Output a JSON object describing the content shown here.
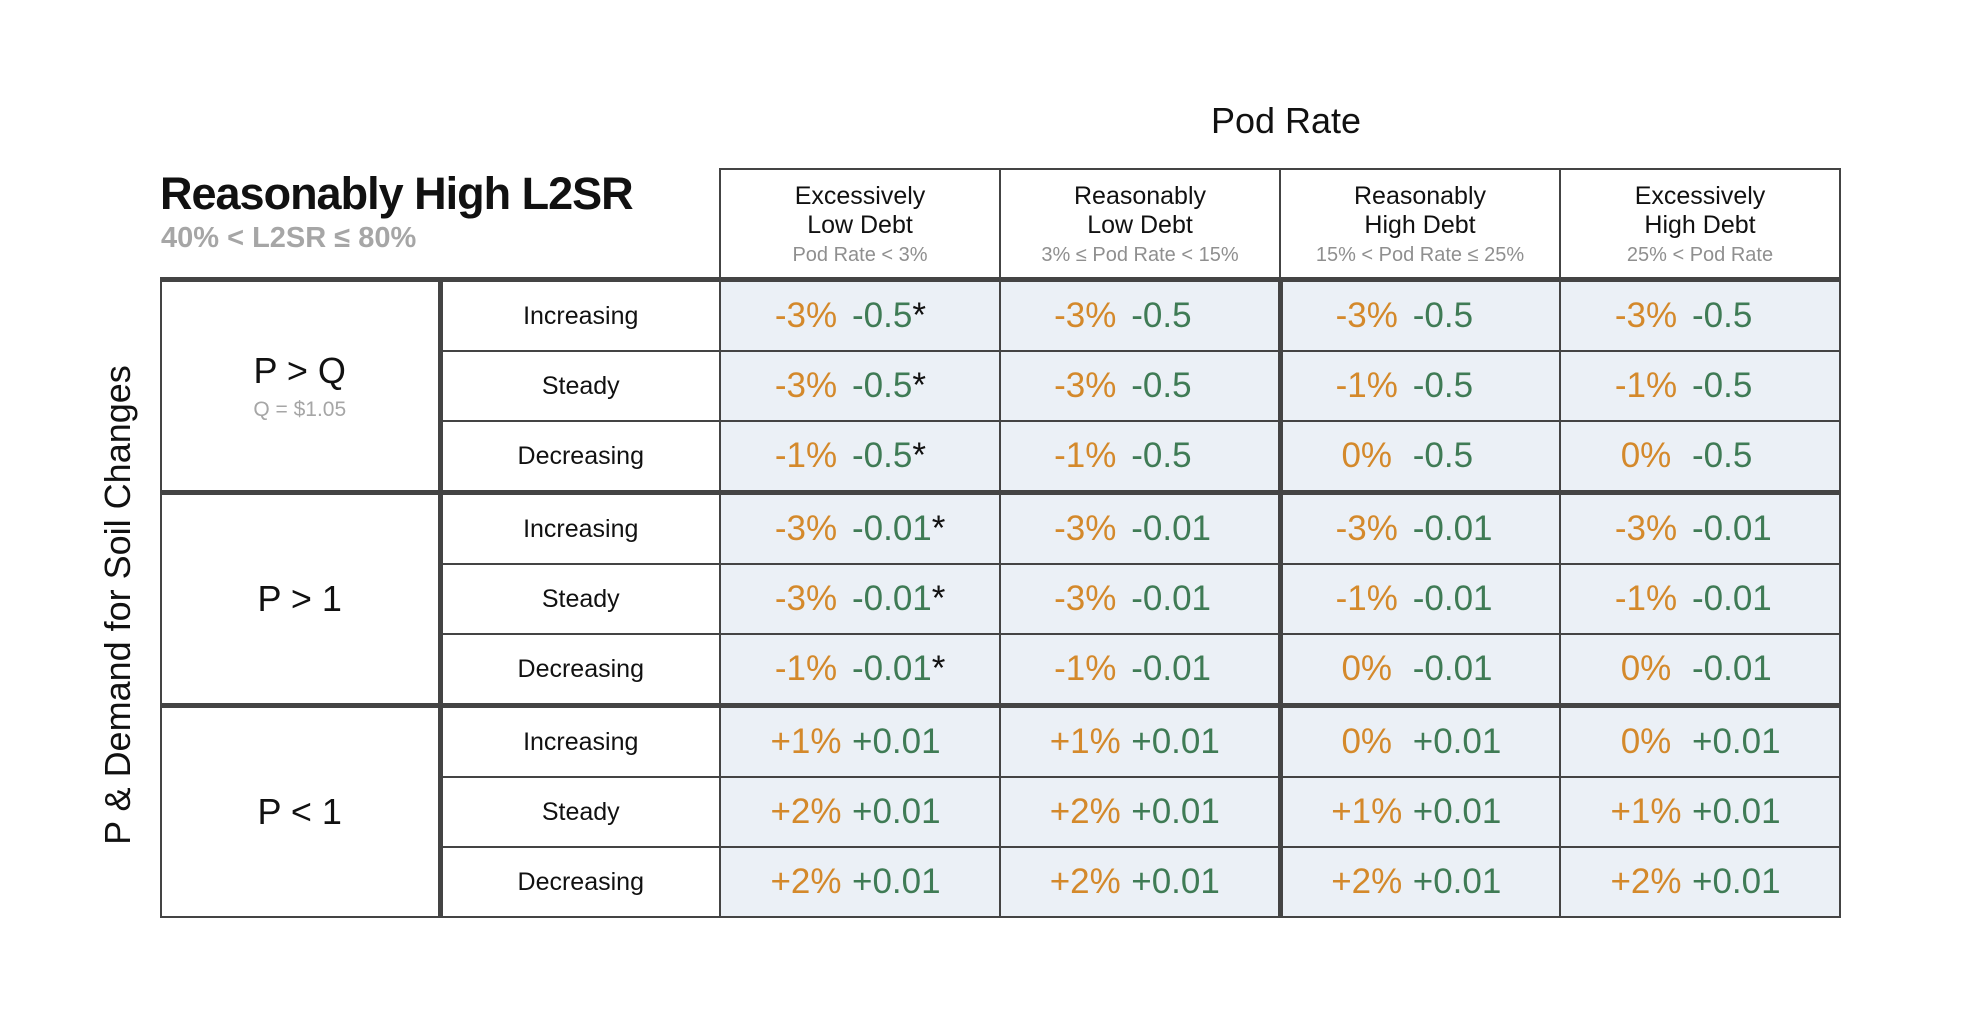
{
  "top_axis_title": "Pod Rate",
  "side_axis_title": "P & Demand for Soil Changes",
  "title": "Reasonably High L2SR",
  "subtitle": "40% < L2SR ≤ 80%",
  "columns": [
    {
      "line1": "Excessively",
      "line2": "Low Debt",
      "range": "Pod Rate < 3%"
    },
    {
      "line1": "Reasonably",
      "line2": "Low Debt",
      "range": "3% ≤ Pod Rate < 15%"
    },
    {
      "line1": "Reasonably",
      "line2": "High Debt",
      "range": "15% < Pod Rate ≤ 25%"
    },
    {
      "line1": "Excessively",
      "line2": "High Debt",
      "range": "25% < Pod Rate"
    }
  ],
  "groups": [
    {
      "label": "P > Q",
      "sublabel": "Q = $1.05",
      "rows": [
        {
          "trend": "Increasing",
          "cells": [
            {
              "pct": "-3%",
              "change": "-0.5",
              "star": "*"
            },
            {
              "pct": "-3%",
              "change": "-0.5",
              "star": ""
            },
            {
              "pct": "-3%",
              "change": "-0.5",
              "star": ""
            },
            {
              "pct": "-3%",
              "change": "-0.5",
              "star": ""
            }
          ]
        },
        {
          "trend": "Steady",
          "cells": [
            {
              "pct": "-3%",
              "change": "-0.5",
              "star": "*"
            },
            {
              "pct": "-3%",
              "change": "-0.5",
              "star": ""
            },
            {
              "pct": "-1%",
              "change": "-0.5",
              "star": ""
            },
            {
              "pct": "-1%",
              "change": "-0.5",
              "star": ""
            }
          ]
        },
        {
          "trend": "Decreasing",
          "cells": [
            {
              "pct": "-1%",
              "change": "-0.5",
              "star": "*"
            },
            {
              "pct": "-1%",
              "change": "-0.5",
              "star": ""
            },
            {
              "pct": "0%",
              "change": "-0.5",
              "star": ""
            },
            {
              "pct": "0%",
              "change": "-0.5",
              "star": ""
            }
          ]
        }
      ]
    },
    {
      "label": "P > 1",
      "sublabel": "",
      "rows": [
        {
          "trend": "Increasing",
          "cells": [
            {
              "pct": "-3%",
              "change": "-0.01",
              "star": "*"
            },
            {
              "pct": "-3%",
              "change": "-0.01",
              "star": ""
            },
            {
              "pct": "-3%",
              "change": "-0.01",
              "star": ""
            },
            {
              "pct": "-3%",
              "change": "-0.01",
              "star": ""
            }
          ]
        },
        {
          "trend": "Steady",
          "cells": [
            {
              "pct": "-3%",
              "change": "-0.01",
              "star": "*"
            },
            {
              "pct": "-3%",
              "change": "-0.01",
              "star": ""
            },
            {
              "pct": "-1%",
              "change": "-0.01",
              "star": ""
            },
            {
              "pct": "-1%",
              "change": "-0.01",
              "star": ""
            }
          ]
        },
        {
          "trend": "Decreasing",
          "cells": [
            {
              "pct": "-1%",
              "change": "-0.01",
              "star": "*"
            },
            {
              "pct": "-1%",
              "change": "-0.01",
              "star": ""
            },
            {
              "pct": "0%",
              "change": "-0.01",
              "star": ""
            },
            {
              "pct": "0%",
              "change": "-0.01",
              "star": ""
            }
          ]
        }
      ]
    },
    {
      "label": "P < 1",
      "sublabel": "",
      "rows": [
        {
          "trend": "Increasing",
          "cells": [
            {
              "pct": "+1%",
              "change": "+0.01",
              "star": ""
            },
            {
              "pct": "+1%",
              "change": "+0.01",
              "star": ""
            },
            {
              "pct": "0%",
              "change": "+0.01",
              "star": ""
            },
            {
              "pct": "0%",
              "change": "+0.01",
              "star": ""
            }
          ]
        },
        {
          "trend": "Steady",
          "cells": [
            {
              "pct": "+2%",
              "change": "+0.01",
              "star": ""
            },
            {
              "pct": "+2%",
              "change": "+0.01",
              "star": ""
            },
            {
              "pct": "+1%",
              "change": "+0.01",
              "star": ""
            },
            {
              "pct": "+1%",
              "change": "+0.01",
              "star": ""
            }
          ]
        },
        {
          "trend": "Decreasing",
          "cells": [
            {
              "pct": "+2%",
              "change": "+0.01",
              "star": ""
            },
            {
              "pct": "+2%",
              "change": "+0.01",
              "star": ""
            },
            {
              "pct": "+2%",
              "change": "+0.01",
              "star": ""
            },
            {
              "pct": "+2%",
              "change": "+0.01",
              "star": ""
            }
          ]
        }
      ]
    }
  ],
  "colors": {
    "percent_text": "#d4892b",
    "change_text": "#3f7b55",
    "cell_fill": "#ebf0f6",
    "grid_line": "#444444",
    "muted_text": "#a6a6a6"
  }
}
